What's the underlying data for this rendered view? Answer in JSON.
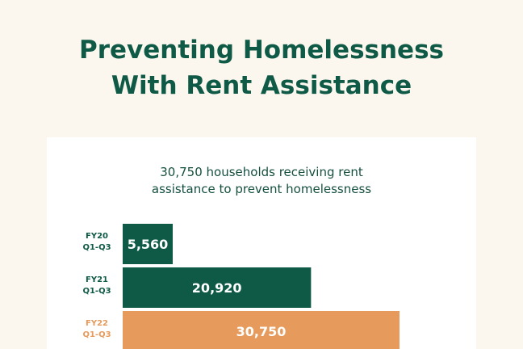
{
  "title_line1": "Preventing Homelessness",
  "title_line2": "With Rent Assistance",
  "colors": {
    "background": "#fbf7ee",
    "title": "#0f5a46",
    "bar_primary": "#0f5a46",
    "bar_highlight": "#e69a5c",
    "card": "#ffffff"
  },
  "chart_data": {
    "type": "bar",
    "orientation": "horizontal",
    "subtitle_line1": "30,750 households receiving rent",
    "subtitle_line2": "assistance to prevent homelessness",
    "categories": [
      [
        "FY20",
        "Q1-Q3"
      ],
      [
        "FY21",
        "Q1-Q3"
      ],
      [
        "FY22",
        "Q1-Q3"
      ]
    ],
    "values": [
      5560,
      20920,
      30750
    ],
    "value_labels": [
      "5,560",
      "20,920",
      "30,750"
    ],
    "highlight_index": 2,
    "xlim": [
      0,
      30750
    ],
    "grid": false,
    "legend": "none"
  }
}
